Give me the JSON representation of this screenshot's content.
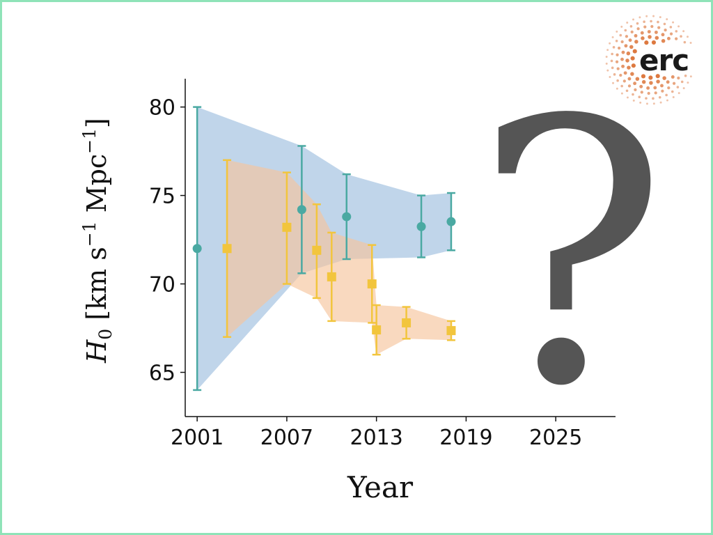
{
  "logo": {
    "text": "erc",
    "dot_color": "#d96a2b"
  },
  "question_mark": "?",
  "chart_data": {
    "type": "scatter",
    "xlabel": "Year",
    "ylabel": "H_0 [km s^-1 Mpc^-1]",
    "xlim": [
      2000.2,
      2029
    ],
    "ylim": [
      62.5,
      81.6
    ],
    "xticks": [
      2001,
      2007,
      2013,
      2019,
      2025
    ],
    "yticks": [
      65,
      70,
      75,
      80
    ],
    "grid": false,
    "series": [
      {
        "color": "#4aa9a2",
        "band_color": "#9ebfde",
        "marker": "circle",
        "points": [
          {
            "x": 2001.0,
            "y": 72.0,
            "lo": 64.0,
            "hi": 80.0
          },
          {
            "x": 2008.0,
            "y": 74.2,
            "lo": 70.6,
            "hi": 77.8
          },
          {
            "x": 2011.0,
            "y": 73.8,
            "lo": 71.4,
            "hi": 76.2
          },
          {
            "x": 2016.0,
            "y": 73.24,
            "lo": 71.5,
            "hi": 75.0
          },
          {
            "x": 2018.0,
            "y": 73.52,
            "lo": 71.9,
            "hi": 75.14
          }
        ]
      },
      {
        "color": "#f2c53d",
        "band_color": "#f6c49c",
        "marker": "square",
        "points": [
          {
            "x": 2003.0,
            "y": 72.0,
            "lo": 67.0,
            "hi": 77.0
          },
          {
            "x": 2007.0,
            "y": 73.2,
            "lo": 70.0,
            "hi": 76.3
          },
          {
            "x": 2009.0,
            "y": 71.9,
            "lo": 69.2,
            "hi": 74.5
          },
          {
            "x": 2010.0,
            "y": 70.4,
            "lo": 67.9,
            "hi": 72.9
          },
          {
            "x": 2012.7,
            "y": 70.0,
            "lo": 67.8,
            "hi": 72.2
          },
          {
            "x": 2013.0,
            "y": 67.4,
            "lo": 66.0,
            "hi": 68.8
          },
          {
            "x": 2015.0,
            "y": 67.8,
            "lo": 66.9,
            "hi": 68.7
          },
          {
            "x": 2018.0,
            "y": 67.36,
            "lo": 66.82,
            "hi": 67.9
          }
        ]
      }
    ]
  }
}
